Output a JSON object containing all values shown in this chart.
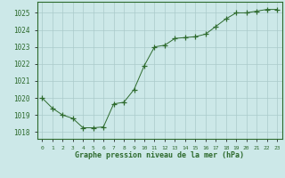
{
  "x": [
    0,
    1,
    2,
    3,
    4,
    5,
    6,
    7,
    8,
    9,
    10,
    11,
    12,
    13,
    14,
    15,
    16,
    17,
    18,
    19,
    20,
    21,
    22,
    23
  ],
  "y": [
    1020.0,
    1019.4,
    1019.0,
    1018.8,
    1018.25,
    1018.25,
    1018.3,
    1019.65,
    1019.75,
    1020.5,
    1021.9,
    1023.0,
    1023.1,
    1023.5,
    1023.55,
    1023.6,
    1023.75,
    1024.2,
    1024.65,
    1025.0,
    1025.0,
    1025.1,
    1025.2,
    1025.2
  ],
  "line_color": "#2d6a2d",
  "marker": "+",
  "bg_color": "#cce8e8",
  "grid_color": "#aacaca",
  "xlabel": "Graphe pression niveau de la mer (hPa)",
  "xlabel_color": "#2d6a2d",
  "ylabel_ticks": [
    1018,
    1019,
    1020,
    1021,
    1022,
    1023,
    1024,
    1025
  ],
  "ylim": [
    1017.6,
    1025.65
  ],
  "xlim": [
    -0.5,
    23.5
  ],
  "tick_label_color": "#2d6a2d",
  "border_color": "#2d6a2d"
}
